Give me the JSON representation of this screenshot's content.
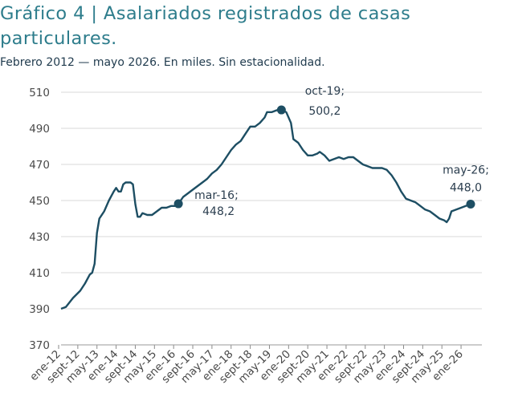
{
  "header": {
    "title": "Gráfico 4 | Asalariados registrados de casas particulares.",
    "subtitle": "Febrero 2012 — mayo 2026. En miles. Sin estacionalidad."
  },
  "chart_data": {
    "type": "line",
    "title": "Gráfico 4 | Asalariados registrados de casas particulares.",
    "subtitle": "Febrero 2012 — mayo 2026. En miles. Sin estacionalidad.",
    "xlabel": "",
    "ylabel": "",
    "ylim": [
      370,
      510
    ],
    "yticks": [
      370,
      390,
      410,
      430,
      450,
      470,
      490,
      510
    ],
    "xtick_labels": [
      "ene-12",
      "sept-12",
      "may-13",
      "ene-14",
      "sept-14",
      "may-15",
      "ene-16",
      "sept-16",
      "may-17",
      "ene-18",
      "sept-18",
      "may-19",
      "ene-20",
      "sept-20",
      "may-21",
      "ene-22",
      "sept-22",
      "may-23",
      "ene-24",
      "sept-24",
      "may-25",
      "ene-26"
    ],
    "grid": true,
    "colors": {
      "line": "#1d4e63",
      "marker": "#1d4e63",
      "grid": "#d9d9d9"
    },
    "series": [
      {
        "points": [
          [
            "feb-12",
            390
          ],
          [
            "abr-12",
            391
          ],
          [
            "jul-12",
            396
          ],
          [
            "oct-12",
            400
          ],
          [
            "dic-12",
            404
          ],
          [
            "feb-13",
            409
          ],
          [
            "mar-13",
            410
          ],
          [
            "abr-13",
            415
          ],
          [
            "may-13",
            432
          ],
          [
            "jun-13",
            440
          ],
          [
            "ago-13",
            444
          ],
          [
            "oct-13",
            450
          ],
          [
            "dic-13",
            455
          ],
          [
            "ene-14",
            457
          ],
          [
            "feb-14",
            455
          ],
          [
            "mar-14",
            455
          ],
          [
            "abr-14",
            459
          ],
          [
            "may-14",
            460
          ],
          [
            "jul-14",
            460
          ],
          [
            "ago-14",
            459
          ],
          [
            "sept-14",
            448
          ],
          [
            "oct-14",
            441
          ],
          [
            "nov-14",
            441
          ],
          [
            "dic-14",
            443
          ],
          [
            "feb-15",
            442
          ],
          [
            "abr-15",
            442
          ],
          [
            "jun-15",
            444
          ],
          [
            "ago-15",
            446
          ],
          [
            "oct-15",
            446
          ],
          [
            "dic-15",
            447
          ],
          [
            "feb-16",
            447
          ],
          [
            "mar-16",
            448.2
          ],
          [
            "may-16",
            452
          ],
          [
            "jul-16",
            454
          ],
          [
            "sept-16",
            456
          ],
          [
            "nov-16",
            458
          ],
          [
            "ene-17",
            460
          ],
          [
            "mar-17",
            462
          ],
          [
            "may-17",
            465
          ],
          [
            "jul-17",
            467
          ],
          [
            "sept-17",
            470
          ],
          [
            "nov-17",
            474
          ],
          [
            "ene-18",
            478
          ],
          [
            "mar-18",
            481
          ],
          [
            "may-18",
            483
          ],
          [
            "jul-18",
            487
          ],
          [
            "sept-18",
            491
          ],
          [
            "nov-18",
            491
          ],
          [
            "ene-19",
            493
          ],
          [
            "mar-19",
            496
          ],
          [
            "abr-19",
            499
          ],
          [
            "jun-19",
            499
          ],
          [
            "ago-19",
            500
          ],
          [
            "oct-19",
            500.2
          ],
          [
            "dic-19",
            499
          ],
          [
            "feb-20",
            493
          ],
          [
            "mar-20",
            484
          ],
          [
            "may-20",
            482
          ],
          [
            "jul-20",
            478
          ],
          [
            "sept-20",
            475
          ],
          [
            "nov-20",
            475
          ],
          [
            "ene-21",
            476
          ],
          [
            "feb-21",
            477
          ],
          [
            "abr-21",
            475
          ],
          [
            "jun-21",
            472
          ],
          [
            "ago-21",
            473
          ],
          [
            "oct-21",
            474
          ],
          [
            "dic-21",
            473
          ],
          [
            "feb-22",
            474
          ],
          [
            "abr-22",
            474
          ],
          [
            "jun-22",
            472
          ],
          [
            "ago-22",
            470
          ],
          [
            "oct-22",
            469
          ],
          [
            "dic-22",
            468
          ],
          [
            "feb-23",
            468
          ],
          [
            "abr-23",
            468
          ],
          [
            "jun-23",
            467
          ],
          [
            "ago-23",
            464
          ],
          [
            "oct-23",
            460
          ],
          [
            "dic-23",
            455
          ],
          [
            "feb-24",
            451
          ],
          [
            "abr-24",
            450
          ],
          [
            "jun-24",
            449
          ],
          [
            "ago-24",
            447
          ],
          [
            "oct-24",
            445
          ],
          [
            "dic-24",
            444
          ],
          [
            "feb-25",
            442
          ],
          [
            "abr-25",
            440
          ],
          [
            "jun-25",
            439
          ],
          [
            "jul-25",
            438
          ],
          [
            "ago-25",
            440
          ],
          [
            "sept-25",
            444
          ],
          [
            "nov-25",
            445
          ],
          [
            "ene-26",
            446
          ],
          [
            "mar-26",
            447
          ],
          [
            "may-26",
            448.0
          ]
        ]
      }
    ],
    "annotations": [
      {
        "x": "mar-16",
        "y": 448.2,
        "label": "mar-16;",
        "value": "448,2"
      },
      {
        "x": "oct-19",
        "y": 500.2,
        "label": "oct-19;",
        "value": "500,2"
      },
      {
        "x": "may-26",
        "y": 448.0,
        "label": "may-26;",
        "value": "448,0"
      }
    ]
  }
}
